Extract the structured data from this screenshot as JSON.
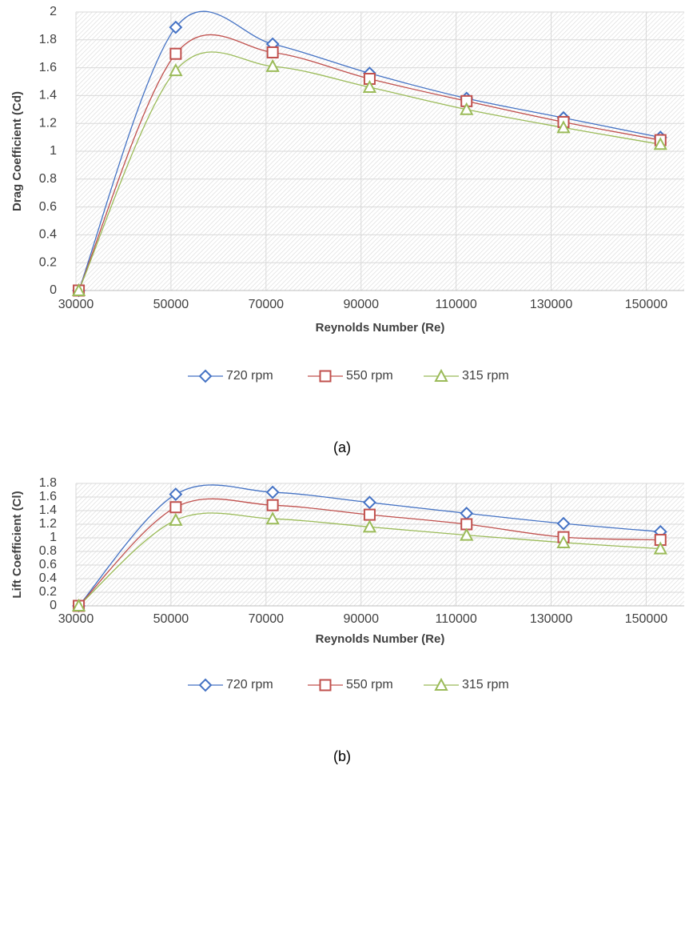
{
  "chart_data": [
    {
      "type": "line",
      "caption": "(a)",
      "xlabel": "Reynolds Number (Re)",
      "ylabel": "Drag Coefficient (Cd)",
      "x": [
        30600,
        51000,
        71400,
        91800,
        112200,
        132600,
        153000
      ],
      "xlim": [
        30000,
        158000
      ],
      "xticks": [
        30000,
        50000,
        70000,
        90000,
        110000,
        130000,
        150000
      ],
      "ylim": [
        0,
        2
      ],
      "yticks": [
        0,
        0.2,
        0.4,
        0.6,
        0.8,
        1,
        1.2,
        1.4,
        1.6,
        1.8,
        2
      ],
      "grid": true,
      "legend": "bottom",
      "series": [
        {
          "name": "720 rpm",
          "color": "#4472c4",
          "marker": "diamond",
          "values": [
            0,
            1.89,
            1.77,
            1.56,
            1.38,
            1.24,
            1.1
          ]
        },
        {
          "name": "550 rpm",
          "color": "#c0504d",
          "marker": "square",
          "values": [
            0,
            1.7,
            1.71,
            1.52,
            1.36,
            1.21,
            1.08
          ]
        },
        {
          "name": "315 rpm",
          "color": "#9bbb59",
          "marker": "triangle",
          "values": [
            0,
            1.58,
            1.61,
            1.46,
            1.3,
            1.17,
            1.05
          ]
        }
      ]
    },
    {
      "type": "line",
      "caption": "(b)",
      "xlabel": "Reynolds Number (Re)",
      "ylabel": "Lift Coefficient (Cl)",
      "x": [
        30600,
        51000,
        71400,
        91800,
        112200,
        132600,
        153000
      ],
      "xlim": [
        30000,
        158000
      ],
      "xticks": [
        30000,
        50000,
        70000,
        90000,
        110000,
        130000,
        150000
      ],
      "ylim": [
        0,
        1.8
      ],
      "yticks": [
        0,
        0.2,
        0.4,
        0.6,
        0.8,
        1,
        1.2,
        1.4,
        1.6,
        1.8
      ],
      "grid": true,
      "legend": "bottom",
      "series": [
        {
          "name": "720 rpm",
          "color": "#4472c4",
          "marker": "diamond",
          "values": [
            0,
            1.64,
            1.67,
            1.52,
            1.36,
            1.21,
            1.09
          ]
        },
        {
          "name": "550 rpm",
          "color": "#c0504d",
          "marker": "square",
          "values": [
            0,
            1.45,
            1.48,
            1.34,
            1.2,
            1.01,
            0.97
          ]
        },
        {
          "name": "315 rpm",
          "color": "#9bbb59",
          "marker": "triangle",
          "values": [
            0,
            1.26,
            1.28,
            1.16,
            1.04,
            0.93,
            0.84
          ]
        }
      ]
    }
  ]
}
